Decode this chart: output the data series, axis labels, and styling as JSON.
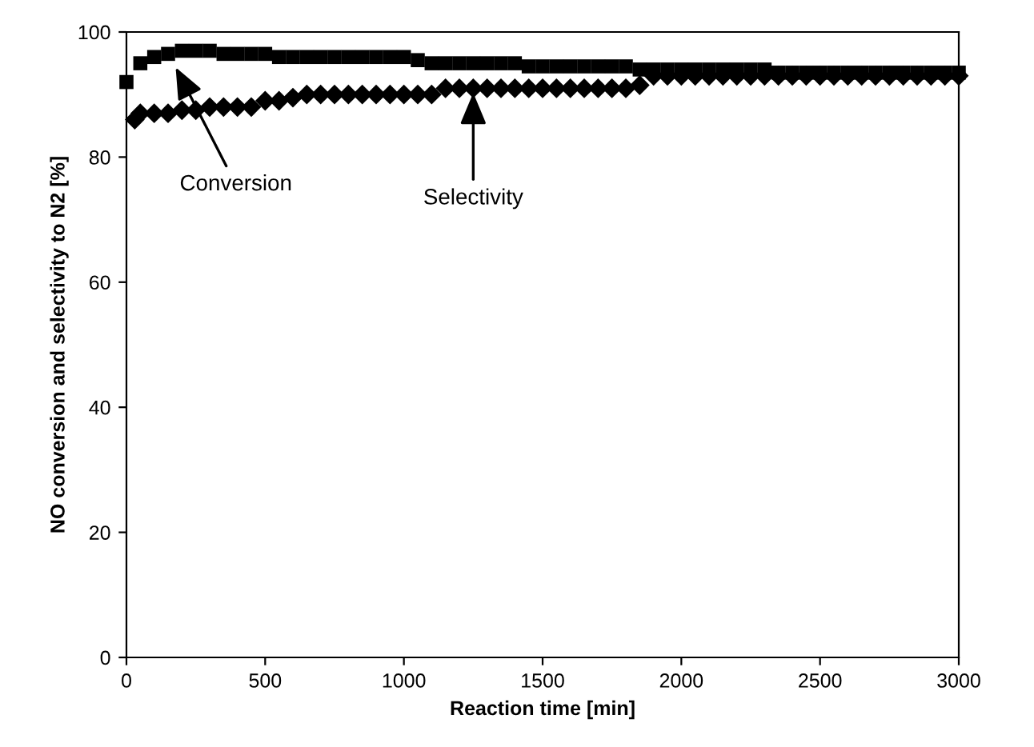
{
  "chart_data": {
    "type": "scatter",
    "xlabel": "Reaction time [min]",
    "ylabel": "NO conversion and selectivity to N2 [%]",
    "xlim": [
      0,
      3000
    ],
    "ylim": [
      0,
      100
    ],
    "xticks": [
      0,
      500,
      1000,
      1500,
      2000,
      2500,
      3000
    ],
    "yticks": [
      0,
      20,
      40,
      60,
      80,
      100
    ],
    "grid": false,
    "series": [
      {
        "color": "#000000",
        "marker": "square",
        "x": [
          0,
          50,
          100,
          150,
          200,
          250,
          300,
          350,
          400,
          450,
          500,
          550,
          600,
          650,
          700,
          750,
          800,
          850,
          900,
          950,
          1000,
          1050,
          1100,
          1150,
          1200,
          1250,
          1300,
          1350,
          1400,
          1450,
          1500,
          1550,
          1600,
          1650,
          1700,
          1750,
          1800,
          1850,
          1900,
          1950,
          2000,
          2050,
          2100,
          2150,
          2200,
          2250,
          2300,
          2350,
          2400,
          2450,
          2500,
          2550,
          2600,
          2650,
          2700,
          2750,
          2800,
          2850,
          2900,
          2950,
          3000
        ],
        "values": [
          92,
          95,
          96,
          96.5,
          97,
          97,
          97,
          96.5,
          96.5,
          96.5,
          96.5,
          96,
          96,
          96,
          96,
          96,
          96,
          96,
          96,
          96,
          96,
          95.5,
          95,
          95,
          95,
          95,
          95,
          95,
          95,
          94.5,
          94.5,
          94.5,
          94.5,
          94.5,
          94.5,
          94.5,
          94.5,
          94,
          94,
          94,
          94,
          94,
          94,
          94,
          94,
          94,
          94,
          93.5,
          93.5,
          93.5,
          93.5,
          93.5,
          93.5,
          93.5,
          93.5,
          93.5,
          93.5,
          93.5,
          93.5,
          93.5,
          93.5
        ]
      },
      {
        "color": "#000000",
        "marker": "diamond",
        "x": [
          30,
          50,
          100,
          150,
          200,
          250,
          300,
          350,
          400,
          450,
          500,
          550,
          600,
          650,
          700,
          750,
          800,
          850,
          900,
          950,
          1000,
          1050,
          1100,
          1150,
          1200,
          1250,
          1300,
          1350,
          1400,
          1450,
          1500,
          1550,
          1600,
          1650,
          1700,
          1750,
          1800,
          1850,
          1900,
          1950,
          2000,
          2050,
          2100,
          2150,
          2200,
          2250,
          2300,
          2350,
          2400,
          2450,
          2500,
          2550,
          2600,
          2650,
          2700,
          2750,
          2800,
          2850,
          2900,
          2950,
          3000
        ],
        "values": [
          86,
          87,
          87,
          87,
          87.5,
          87.5,
          88,
          88,
          88,
          88,
          89,
          89,
          89.5,
          90,
          90,
          90,
          90,
          90,
          90,
          90,
          90,
          90,
          90,
          91,
          91,
          91,
          91,
          91,
          91,
          91,
          91,
          91,
          91,
          91,
          91,
          91,
          91,
          91.5,
          93,
          93,
          93,
          93,
          93,
          93,
          93,
          93,
          93,
          93,
          93,
          93,
          93,
          93,
          93,
          93,
          93,
          93,
          93,
          93,
          93,
          93,
          93
        ]
      }
    ],
    "annotations": [
      {
        "text": "Conversion",
        "x": 170,
        "y": 95
      },
      {
        "text": "Selectivity",
        "x": 1250,
        "y": 91
      }
    ]
  }
}
